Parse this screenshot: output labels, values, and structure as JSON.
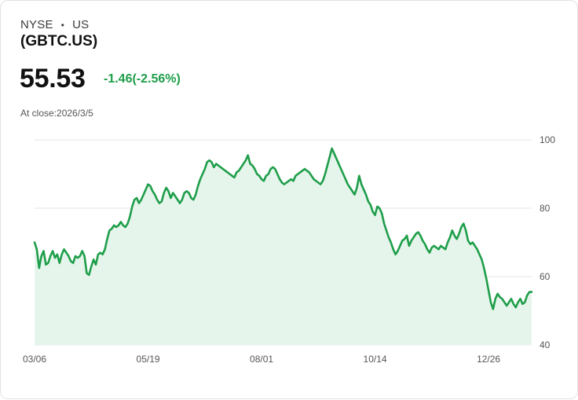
{
  "header": {
    "exchange": "NYSE",
    "separator": "•",
    "region": "US",
    "ticker": "(GBTC.US)",
    "price": "55.53",
    "change": "-1.46(-2.56%)",
    "close_label": "At close:",
    "close_date": "2026/3/5"
  },
  "colors": {
    "line": "#1e9e4a",
    "fill": "#e6f5eb",
    "grid": "#e6e6e6",
    "change": "#1e9e4a"
  },
  "chart_data": {
    "type": "area",
    "title": "",
    "xlabel": "",
    "ylabel": "",
    "ylim": [
      40,
      100
    ],
    "y_ticks": [
      "100",
      "80",
      "60",
      "40"
    ],
    "y_tick_values": [
      100,
      80,
      60,
      40
    ],
    "x_ticks": [
      "03/06",
      "05/19",
      "08/01",
      "10/14",
      "12/26"
    ],
    "x_tick_index": [
      0,
      50,
      100,
      150,
      200
    ],
    "series": [
      {
        "name": "GBTC.US",
        "values": [
          70.0,
          68.0,
          62.5,
          66.0,
          67.5,
          63.5,
          64.0,
          66.0,
          67.5,
          65.5,
          66.5,
          64.0,
          66.5,
          68.0,
          67.0,
          66.0,
          64.5,
          64.0,
          66.0,
          65.5,
          66.0,
          67.5,
          66.0,
          61.0,
          60.5,
          63.0,
          65.0,
          63.5,
          66.5,
          67.0,
          66.5,
          68.0,
          71.0,
          73.5,
          74.0,
          75.0,
          74.5,
          75.0,
          76.0,
          75.0,
          74.5,
          75.5,
          77.5,
          80.5,
          82.5,
          83.0,
          81.5,
          82.5,
          84.0,
          85.5,
          87.0,
          86.5,
          85.0,
          84.0,
          82.5,
          81.5,
          82.0,
          84.5,
          86.0,
          85.0,
          83.0,
          84.5,
          83.5,
          82.5,
          81.5,
          82.5,
          84.5,
          85.0,
          84.5,
          83.0,
          82.5,
          84.0,
          86.5,
          88.5,
          90.0,
          91.5,
          93.5,
          94.0,
          93.5,
          92.0,
          93.0,
          92.5,
          92.0,
          91.5,
          91.0,
          90.5,
          90.0,
          89.5,
          89.0,
          90.5,
          91.0,
          92.0,
          93.0,
          94.0,
          95.5,
          93.0,
          92.5,
          91.5,
          90.0,
          89.5,
          88.5,
          88.0,
          89.5,
          90.0,
          91.5,
          92.0,
          91.5,
          90.0,
          88.5,
          87.5,
          87.0,
          87.5,
          88.0,
          88.5,
          88.0,
          89.5,
          90.0,
          90.5,
          91.0,
          91.5,
          91.0,
          90.5,
          89.5,
          88.5,
          88.0,
          87.5,
          87.0,
          88.0,
          90.0,
          92.5,
          95.0,
          97.5,
          96.0,
          94.5,
          93.0,
          91.5,
          90.0,
          88.5,
          87.0,
          86.0,
          85.0,
          84.0,
          86.0,
          89.5,
          87.0,
          85.5,
          84.0,
          82.0,
          81.0,
          79.0,
          78.0,
          80.5,
          80.0,
          78.5,
          75.5,
          73.5,
          71.5,
          70.0,
          68.0,
          66.5,
          67.5,
          69.0,
          70.5,
          71.0,
          72.0,
          69.0,
          70.5,
          71.5,
          72.5,
          73.0,
          72.0,
          70.5,
          69.5,
          68.0,
          67.0,
          68.5,
          69.0,
          68.5,
          68.0,
          69.0,
          68.5,
          68.0,
          70.0,
          71.5,
          73.5,
          72.0,
          71.0,
          72.5,
          74.5,
          75.5,
          73.5,
          70.5,
          69.5,
          70.0,
          69.0,
          68.0,
          66.5,
          65.0,
          62.5,
          59.5,
          56.0,
          52.5,
          50.5,
          53.5,
          55.0,
          54.0,
          53.5,
          52.5,
          51.5,
          52.5,
          53.5,
          52.0,
          51.0,
          52.5,
          53.5,
          52.0,
          52.5,
          54.5,
          55.5,
          55.53
        ]
      }
    ]
  }
}
